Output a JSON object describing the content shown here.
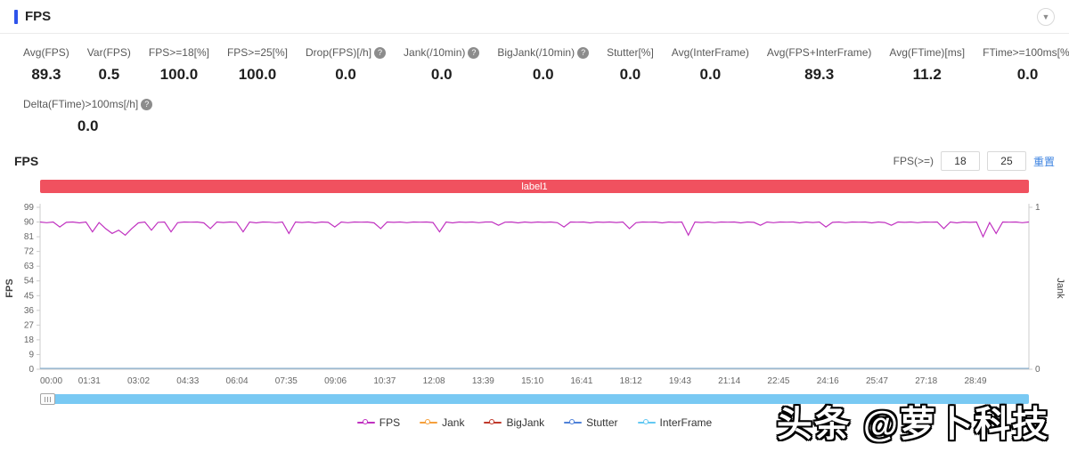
{
  "header": {
    "title": "FPS"
  },
  "metrics": [
    {
      "label": "Avg(FPS)",
      "value": "89.3",
      "help": false
    },
    {
      "label": "Var(FPS)",
      "value": "0.5",
      "help": false
    },
    {
      "label": "FPS>=18[%]",
      "value": "100.0",
      "help": false
    },
    {
      "label": "FPS>=25[%]",
      "value": "100.0",
      "help": false
    },
    {
      "label": "Drop(FPS)[/h]",
      "value": "0.0",
      "help": true
    },
    {
      "label": "Jank(/10min)",
      "value": "0.0",
      "help": true
    },
    {
      "label": "BigJank(/10min)",
      "value": "0.0",
      "help": true
    },
    {
      "label": "Stutter[%]",
      "value": "0.0",
      "help": false
    },
    {
      "label": "Avg(InterFrame)",
      "value": "0.0",
      "help": false
    },
    {
      "label": "Avg(FPS+InterFrame)",
      "value": "89.3",
      "help": false
    },
    {
      "label": "Avg(FTime)[ms]",
      "value": "11.2",
      "help": false
    },
    {
      "label": "FTime>=100ms[%]",
      "value": "0.0",
      "help": false
    }
  ],
  "metrics_row2": [
    {
      "label": "Delta(FTime)>100ms[/h]",
      "value": "0.0",
      "help": true
    }
  ],
  "chart_controls": {
    "section_title": "FPS",
    "fps_filter_label": "FPS(>=)",
    "input1": "18",
    "input2": "25",
    "reset_label": "重置"
  },
  "chart_data": {
    "type": "line",
    "banner_label": "label1",
    "banner_color": "#f0515f",
    "y_axis_left": {
      "name": "FPS",
      "ticks": [
        0,
        9,
        18,
        27,
        36,
        45,
        54,
        63,
        72,
        81,
        90,
        99
      ],
      "range": [
        0,
        99
      ]
    },
    "y_axis_right": {
      "name": "Jank",
      "ticks": [
        0,
        1
      ],
      "range": [
        0,
        1
      ]
    },
    "x_labels": [
      "00:00",
      "01:31",
      "03:02",
      "04:33",
      "06:04",
      "07:35",
      "09:06",
      "10:37",
      "12:08",
      "13:39",
      "15:10",
      "16:41",
      "18:12",
      "19:43",
      "21:14",
      "22:45",
      "24:16",
      "25:47",
      "27:18",
      "28:49"
    ],
    "legend_position": "bottom",
    "grid": false,
    "series": [
      {
        "name": "FPS",
        "color": "#c031c0",
        "values": [
          90,
          89.6,
          90,
          87,
          89.8,
          90,
          89.5,
          90,
          84,
          89.7,
          86,
          83,
          85,
          82,
          86,
          89.5,
          90,
          85,
          89.8,
          90,
          84,
          89.6,
          90,
          89.9,
          90,
          89.5,
          86,
          90,
          89.7,
          90,
          89.8,
          84,
          90,
          89.5,
          90,
          89.9,
          89.6,
          90,
          83,
          90,
          89.7,
          90,
          89.5,
          90,
          89.8,
          87,
          90,
          89.6,
          90,
          89.9,
          90,
          89.5,
          86,
          90,
          89.8,
          90,
          89.6,
          90,
          89.9,
          90,
          89.7,
          84,
          90,
          89.5,
          90,
          89.8,
          90,
          89.6,
          90,
          90,
          88,
          89.9,
          90,
          89.5,
          90,
          89.7,
          90,
          89.8,
          90,
          89.6,
          87,
          90,
          89.9,
          90,
          89.5,
          90,
          89.8,
          90,
          89.7,
          90,
          86,
          89.6,
          90,
          89.9,
          90,
          89.5,
          90,
          89.8,
          90,
          82,
          90,
          89.7,
          90,
          89.6,
          90,
          89.9,
          90,
          89.5,
          90,
          89.8,
          88,
          90,
          89.6,
          90,
          89.9,
          90,
          89.5,
          90,
          89.7,
          90,
          87,
          89.8,
          90,
          89.6,
          90,
          89.9,
          90,
          89.5,
          90,
          89.7,
          88,
          90,
          89.8,
          90,
          89.6,
          90,
          89.9,
          90,
          86,
          90,
          89.5,
          90,
          89.8,
          90,
          81,
          89.7,
          83,
          90,
          89.9,
          90,
          89.6,
          90
        ]
      },
      {
        "name": "Jank",
        "color": "#f5a03c",
        "const_value": 0
      },
      {
        "name": "BigJank",
        "color": "#c0392b",
        "const_value": 0
      },
      {
        "name": "Stutter",
        "color": "#4f81d8",
        "const_value": 0
      },
      {
        "name": "InterFrame",
        "color": "#63c8f2",
        "const_value": 0
      }
    ]
  },
  "watermark": "头条 @萝卜科技"
}
